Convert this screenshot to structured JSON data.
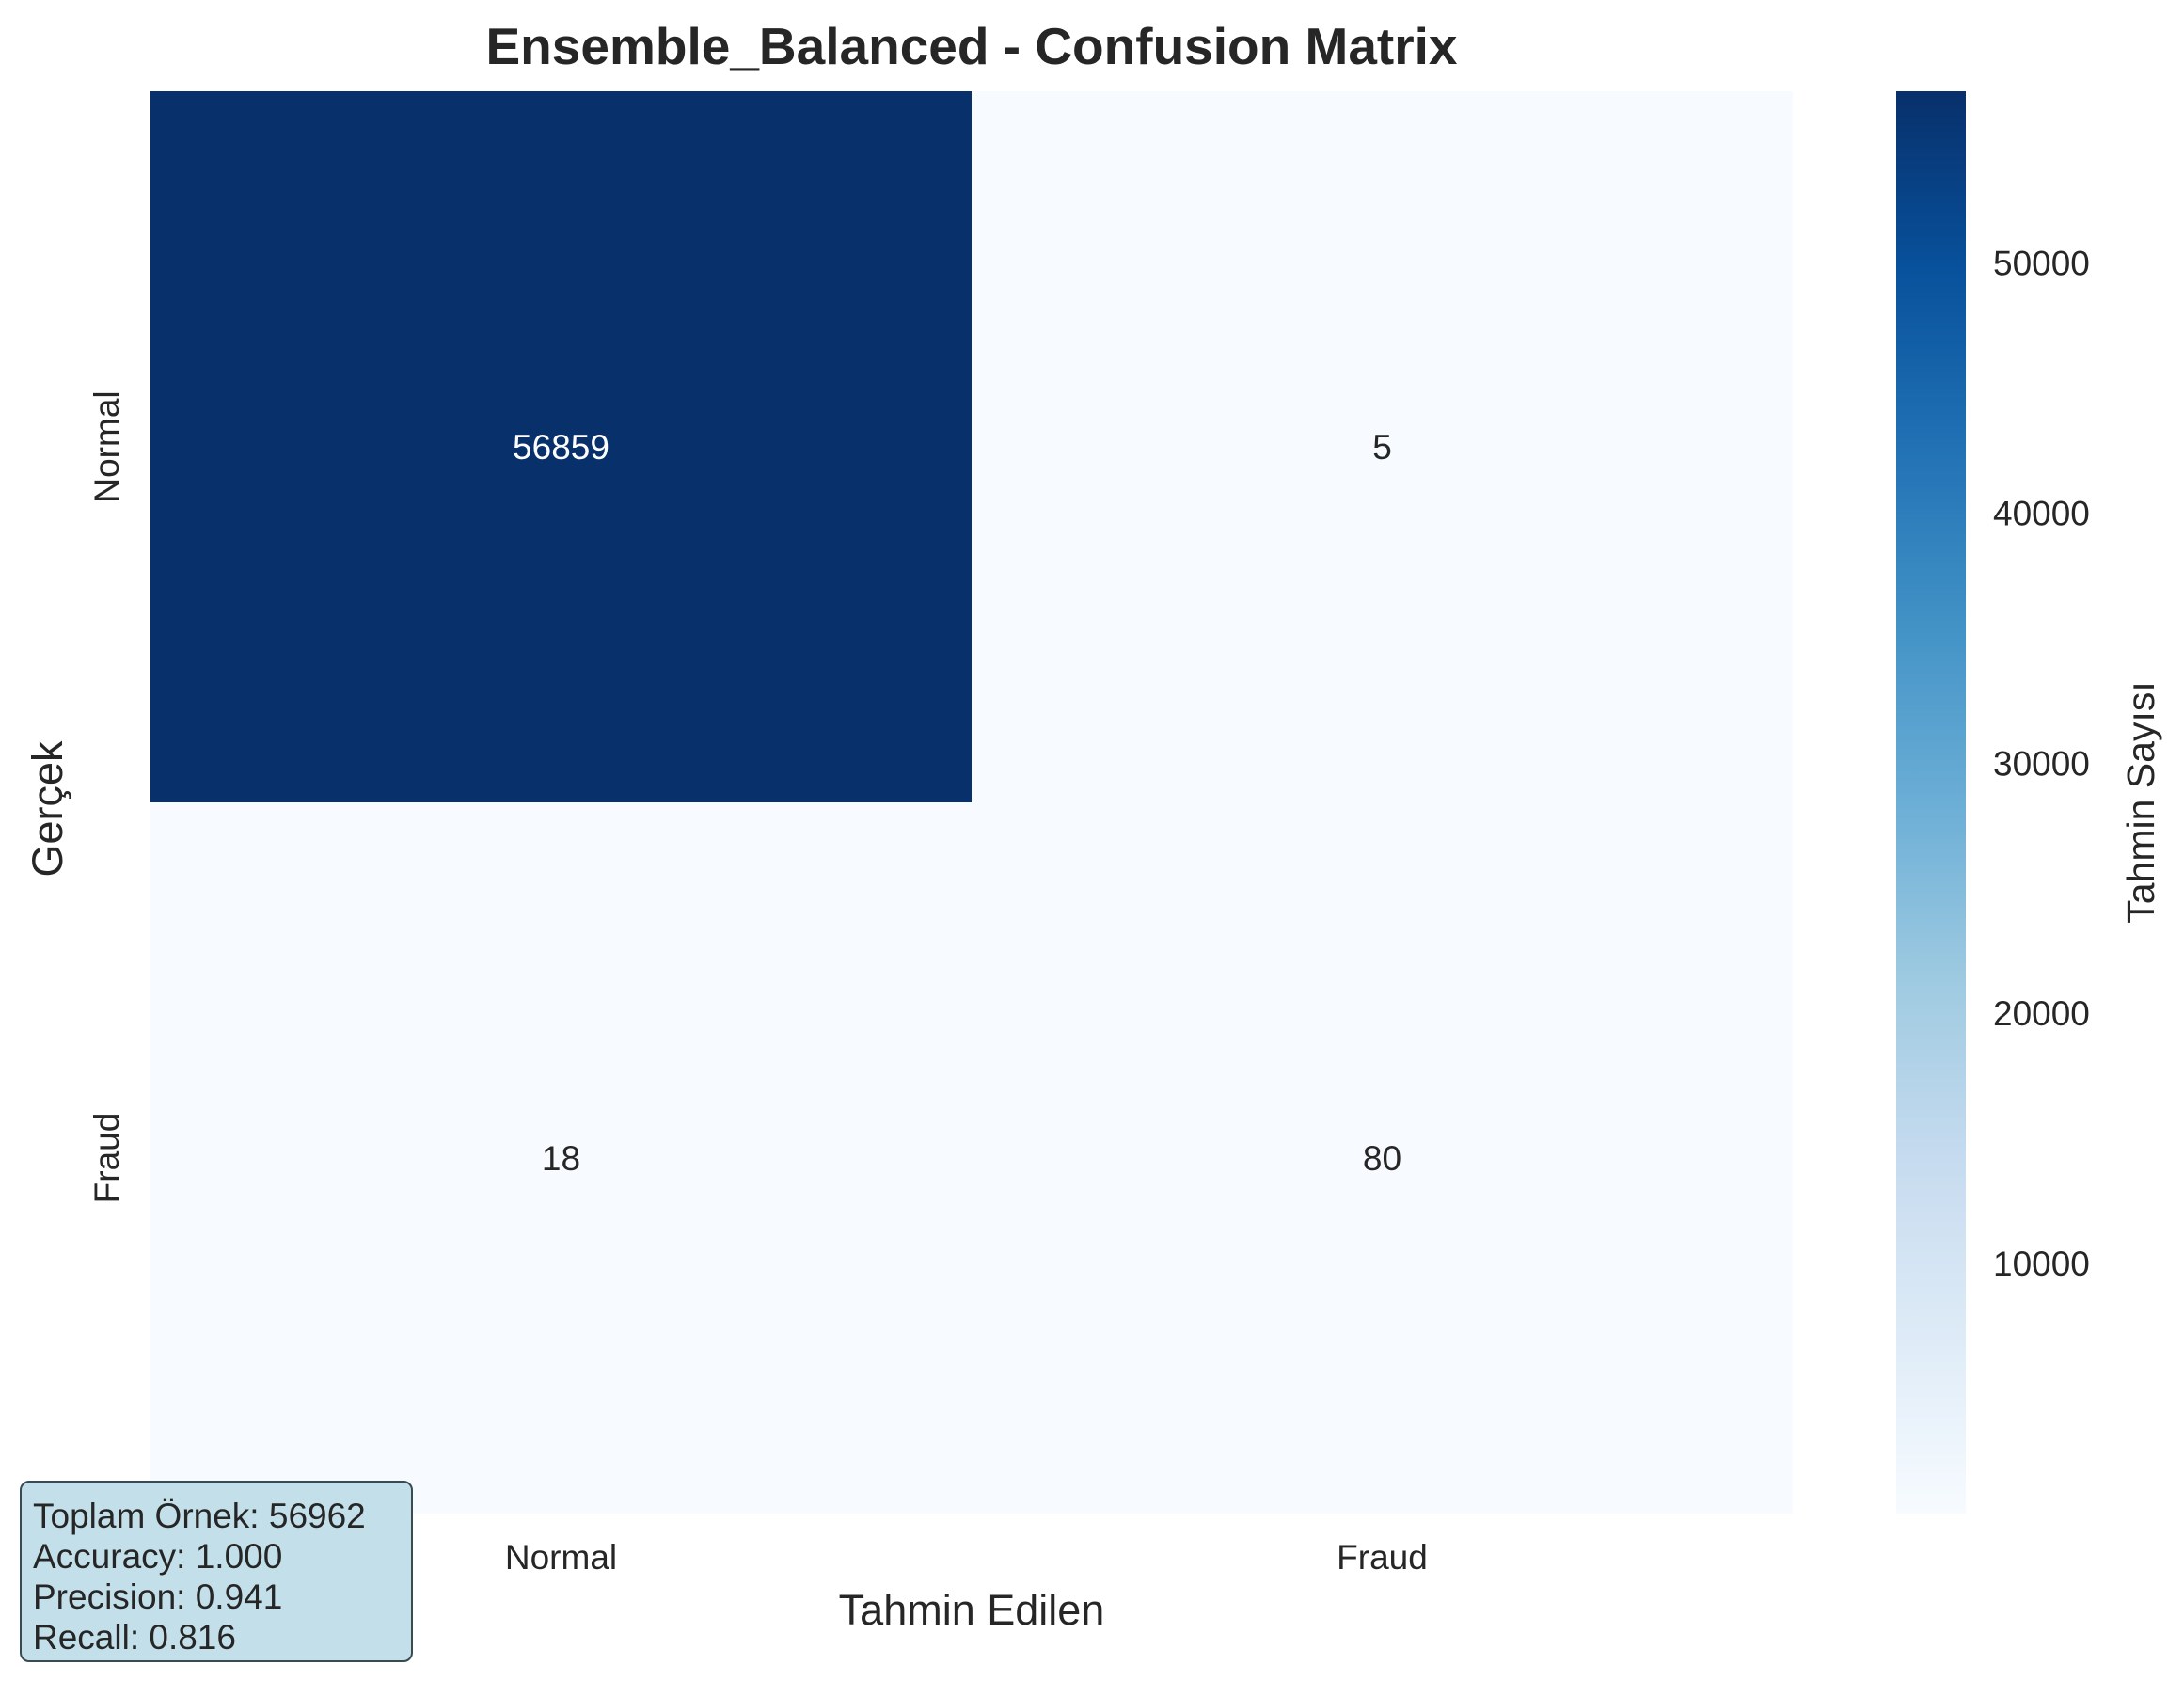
{
  "chart_data": {
    "type": "heatmap",
    "title": "Ensemble_Balanced - Confusion Matrix",
    "xlabel": "Tahmin Edilen",
    "ylabel": "Gerçek",
    "x_categories": [
      "Normal",
      "Fraud"
    ],
    "y_categories": [
      "Normal",
      "Fraud"
    ],
    "values": [
      [
        56859,
        5
      ],
      [
        18,
        80
      ]
    ],
    "colormap": "Blues",
    "colorbar": {
      "label": "Tahmin Sayısı",
      "range": [
        5,
        56859
      ],
      "ticks": [
        10000,
        20000,
        30000,
        40000,
        50000
      ]
    }
  },
  "stats": {
    "total": "Toplam Örnek: 56962",
    "accuracy": "Accuracy: 1.000",
    "precision": "Precision: 0.941",
    "recall": "Recall: 0.816"
  },
  "colors": {
    "cmap_low": "#f7fbff",
    "cmap_high": "#08306b",
    "stats_box_bg": "#c3e0ea",
    "text_dark": "#262626",
    "text_light": "#ffffff"
  }
}
